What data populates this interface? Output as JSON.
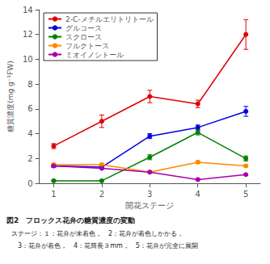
{
  "chart_data": {
    "type": "line",
    "x_label": "開花ステージ",
    "y_label": "糖質濃度(mg g⁻¹FW)",
    "x": [
      1,
      2,
      3,
      4,
      5
    ],
    "xlim": [
      0.7,
      5.3
    ],
    "xticks": [
      1,
      2,
      3,
      4,
      5
    ],
    "ylim": [
      0,
      14
    ],
    "yticks": [
      0,
      2,
      4,
      6,
      8,
      10,
      12,
      14
    ],
    "grid": false,
    "legend": "upper left",
    "series": [
      {
        "name": "2-C-メチルエリトリトール",
        "color": "#e00000",
        "marker": "circle",
        "values": [
          3.0,
          5.0,
          7.0,
          6.4,
          12.0
        ],
        "yerr": [
          0.2,
          0.5,
          0.5,
          0.3,
          1.2
        ]
      },
      {
        "name": "グルコース",
        "color": "#0000e0",
        "marker": "circle",
        "values": [
          1.4,
          1.3,
          3.8,
          4.5,
          5.8
        ],
        "yerr": [
          0.1,
          0.1,
          0.2,
          0.2,
          0.4
        ]
      },
      {
        "name": "スクロース",
        "color": "#008000",
        "marker": "circle",
        "values": [
          0.2,
          0.2,
          2.1,
          4.1,
          2.0
        ],
        "yerr": [
          0.05,
          0.05,
          0.2,
          0.2,
          0.2
        ]
      },
      {
        "name": "フルクトース",
        "color": "#ff8800",
        "marker": "circle",
        "values": [
          1.5,
          1.5,
          0.9,
          1.7,
          1.4
        ],
        "yerr": [
          0.1,
          0.1,
          0.05,
          0.1,
          0.1
        ]
      },
      {
        "name": "ミオイノシトール",
        "color": "#aa00aa",
        "marker": "circle",
        "values": [
          1.4,
          1.2,
          0.9,
          0.3,
          0.7
        ],
        "yerr": [
          0.05,
          0.05,
          0.05,
          0.05,
          0.05
        ]
      }
    ],
    "annotations": [
      "図2　フロックス花弁の糖質濃度の変動",
      "ステージ：１：花弁が未着色，　2：花弁が着色しかかる，",
      "　3：花弁が着色，　4：花筒長３mm，　5：花弁が完全に展開"
    ]
  }
}
